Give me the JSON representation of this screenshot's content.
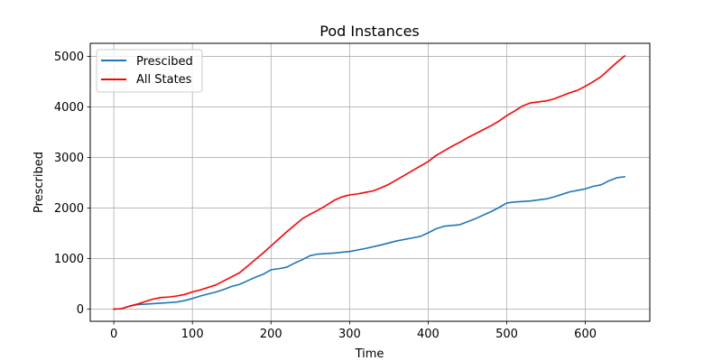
{
  "chart_data": {
    "type": "line",
    "title": "Pod Instances",
    "xlabel": "Time",
    "ylabel": "Prescribed",
    "xlim": [
      -30,
      682
    ],
    "ylim": [
      -240,
      5260
    ],
    "x_ticks": [
      0,
      100,
      200,
      300,
      400,
      500,
      600
    ],
    "y_ticks": [
      0,
      1000,
      2000,
      3000,
      4000,
      5000
    ],
    "grid": true,
    "legend_position": "top-left",
    "series": [
      {
        "name": "Prescibed",
        "color": "#1f77b4",
        "points": [
          [
            0,
            0
          ],
          [
            10,
            10
          ],
          [
            20,
            60
          ],
          [
            30,
            90
          ],
          [
            50,
            110
          ],
          [
            70,
            130
          ],
          [
            80,
            140
          ],
          [
            90,
            170
          ],
          [
            100,
            210
          ],
          [
            110,
            260
          ],
          [
            120,
            300
          ],
          [
            130,
            340
          ],
          [
            140,
            390
          ],
          [
            150,
            450
          ],
          [
            160,
            490
          ],
          [
            170,
            560
          ],
          [
            180,
            630
          ],
          [
            190,
            690
          ],
          [
            200,
            780
          ],
          [
            210,
            800
          ],
          [
            220,
            830
          ],
          [
            230,
            910
          ],
          [
            240,
            980
          ],
          [
            250,
            1060
          ],
          [
            260,
            1090
          ],
          [
            280,
            1110
          ],
          [
            300,
            1140
          ],
          [
            320,
            1200
          ],
          [
            340,
            1270
          ],
          [
            360,
            1350
          ],
          [
            380,
            1410
          ],
          [
            390,
            1440
          ],
          [
            400,
            1510
          ],
          [
            410,
            1590
          ],
          [
            420,
            1640
          ],
          [
            440,
            1670
          ],
          [
            460,
            1790
          ],
          [
            480,
            1930
          ],
          [
            490,
            2010
          ],
          [
            500,
            2100
          ],
          [
            510,
            2120
          ],
          [
            530,
            2140
          ],
          [
            550,
            2180
          ],
          [
            560,
            2220
          ],
          [
            570,
            2270
          ],
          [
            580,
            2320
          ],
          [
            590,
            2350
          ],
          [
            600,
            2380
          ],
          [
            610,
            2430
          ],
          [
            620,
            2460
          ],
          [
            630,
            2540
          ],
          [
            640,
            2600
          ],
          [
            650,
            2620
          ]
        ]
      },
      {
        "name": "All States",
        "color": "#ff0000",
        "points": [
          [
            0,
            0
          ],
          [
            10,
            10
          ],
          [
            20,
            60
          ],
          [
            30,
            100
          ],
          [
            40,
            150
          ],
          [
            50,
            200
          ],
          [
            60,
            230
          ],
          [
            70,
            240
          ],
          [
            80,
            260
          ],
          [
            90,
            290
          ],
          [
            100,
            340
          ],
          [
            110,
            380
          ],
          [
            120,
            430
          ],
          [
            130,
            480
          ],
          [
            140,
            560
          ],
          [
            150,
            640
          ],
          [
            160,
            720
          ],
          [
            170,
            850
          ],
          [
            180,
            980
          ],
          [
            190,
            1110
          ],
          [
            200,
            1250
          ],
          [
            210,
            1390
          ],
          [
            220,
            1530
          ],
          [
            230,
            1660
          ],
          [
            240,
            1790
          ],
          [
            250,
            1880
          ],
          [
            260,
            1960
          ],
          [
            270,
            2050
          ],
          [
            280,
            2150
          ],
          [
            290,
            2220
          ],
          [
            300,
            2260
          ],
          [
            310,
            2280
          ],
          [
            320,
            2310
          ],
          [
            330,
            2340
          ],
          [
            340,
            2400
          ],
          [
            350,
            2470
          ],
          [
            360,
            2560
          ],
          [
            370,
            2650
          ],
          [
            380,
            2740
          ],
          [
            390,
            2830
          ],
          [
            400,
            2920
          ],
          [
            410,
            3040
          ],
          [
            420,
            3130
          ],
          [
            430,
            3220
          ],
          [
            440,
            3300
          ],
          [
            450,
            3390
          ],
          [
            460,
            3470
          ],
          [
            470,
            3550
          ],
          [
            480,
            3630
          ],
          [
            490,
            3720
          ],
          [
            500,
            3830
          ],
          [
            510,
            3920
          ],
          [
            520,
            4020
          ],
          [
            530,
            4080
          ],
          [
            540,
            4100
          ],
          [
            550,
            4120
          ],
          [
            560,
            4160
          ],
          [
            570,
            4220
          ],
          [
            580,
            4280
          ],
          [
            590,
            4330
          ],
          [
            600,
            4410
          ],
          [
            610,
            4500
          ],
          [
            620,
            4600
          ],
          [
            630,
            4740
          ],
          [
            640,
            4880
          ],
          [
            650,
            5010
          ]
        ]
      }
    ]
  }
}
